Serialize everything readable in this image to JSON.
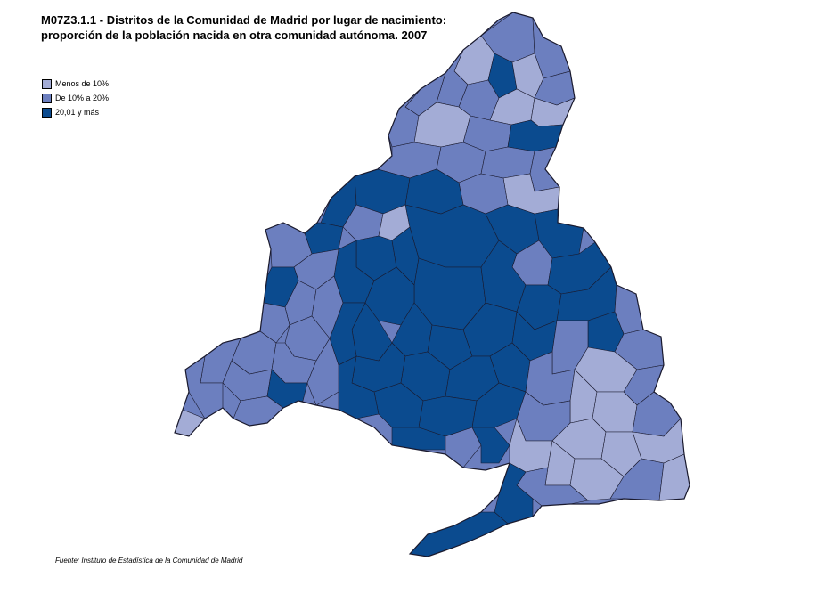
{
  "title": {
    "line1": "M07Z3.1.1 - Distritos de la Comunidad de Madrid por lugar de nacimiento:",
    "line2": "proporción de la población nacida en otra comunidad autónoma. 2007"
  },
  "legend": {
    "items": [
      {
        "label": "Menos de 10%",
        "color": "#a3acd6"
      },
      {
        "label": "De 10% a 20%",
        "color": "#6c7fbf"
      },
      {
        "label": "20,01 y más",
        "color": "#0b4b8f"
      }
    ]
  },
  "source": "Fuente: Instituto de Estadística de la Comunidad de Madrid",
  "colors": {
    "light": "#a3acd6",
    "medium": "#6c7fbf",
    "dark": "#0b4b8f",
    "border": "#1a1a2e"
  }
}
